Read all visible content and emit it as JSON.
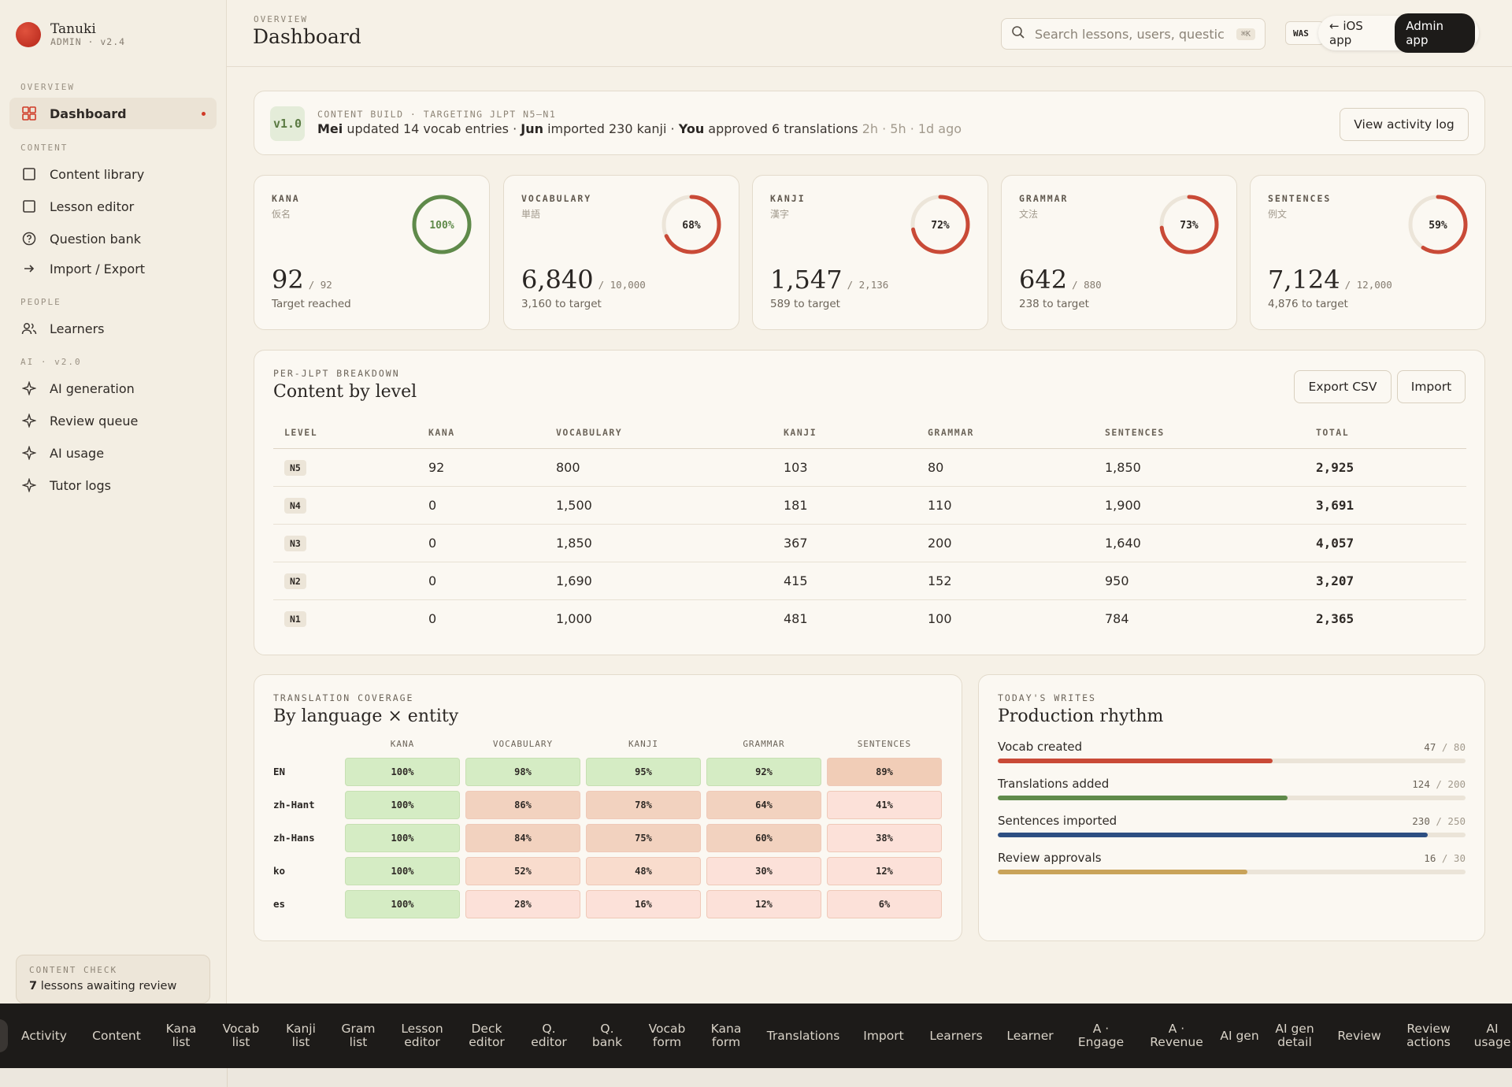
{
  "brand": {
    "name": "Tanuki",
    "sub": "ADMIN · v2.4"
  },
  "sidebar": {
    "sections": {
      "overview": "OVERVIEW",
      "content": "CONTENT",
      "people": "PEOPLE",
      "ai": "AI · v2.0"
    },
    "items": [
      {
        "label": "Dashboard",
        "icon": "grid-icon",
        "active": true
      },
      {
        "label": "Content library",
        "icon": "square-icon"
      },
      {
        "label": "Lesson editor",
        "icon": "square-icon"
      },
      {
        "label": "Question bank",
        "icon": "question-circle-icon"
      },
      {
        "label": "Import / Export",
        "icon": "arrow-right-icon"
      },
      {
        "label": "Learners",
        "icon": "users-icon"
      },
      {
        "label": "AI generation",
        "icon": "sparkle-icon"
      },
      {
        "label": "Review queue",
        "icon": "sparkle-icon"
      },
      {
        "label": "AI usage",
        "icon": "sparkle-icon"
      },
      {
        "label": "Tutor logs",
        "icon": "sparkle-icon"
      }
    ],
    "content_check": {
      "label": "CONTENT CHECK",
      "count": "7",
      "text": "lessons awaiting review"
    }
  },
  "header": {
    "overline": "OVERVIEW",
    "title": "Dashboard",
    "search_placeholder": "Search lessons, users, questic",
    "search_shortcut": "⌘K",
    "env_badge": "WAS",
    "ios_link": "← iOS app",
    "admin_button": "Admin app"
  },
  "activity": {
    "version": "v1.0",
    "overline": "CONTENT BUILD · TARGETING JLPT N5–N1",
    "entries": [
      {
        "who": "Mei",
        "what": "updated 14 vocab entries"
      },
      {
        "who": "Jun",
        "what": "imported 230 kanji"
      },
      {
        "who": "You",
        "what": "approved 6 translations"
      }
    ],
    "times": "2h · 5h · 1d ago",
    "button": "View activity log"
  },
  "stats": [
    {
      "label": "KANA",
      "jp": "仮名",
      "value": "92",
      "target": "/ 92",
      "sub": "Target reached",
      "pct": 100,
      "pct_label": "100%",
      "color": "#5f8a4a"
    },
    {
      "label": "VOCABULARY",
      "jp": "単語",
      "value": "6,840",
      "target": "/ 10,000",
      "sub": "3,160 to target",
      "pct": 68,
      "pct_label": "68%",
      "color": "#c94a37"
    },
    {
      "label": "KANJI",
      "jp": "漢字",
      "value": "1,547",
      "target": "/ 2,136",
      "sub": "589 to target",
      "pct": 72,
      "pct_label": "72%",
      "color": "#c94a37"
    },
    {
      "label": "GRAMMAR",
      "jp": "文法",
      "value": "642",
      "target": "/ 880",
      "sub": "238 to target",
      "pct": 73,
      "pct_label": "73%",
      "color": "#c94a37"
    },
    {
      "label": "SENTENCES",
      "jp": "例文",
      "value": "7,124",
      "target": "/ 12,000",
      "sub": "4,876 to target",
      "pct": 59,
      "pct_label": "59%",
      "color": "#c94a37"
    }
  ],
  "levels": {
    "overline": "PER-JLPT BREAKDOWN",
    "title": "Content by level",
    "export_button": "Export CSV",
    "import_button": "Import",
    "columns": [
      "LEVEL",
      "KANA",
      "VOCABULARY",
      "KANJI",
      "GRAMMAR",
      "SENTENCES",
      "TOTAL"
    ],
    "rows": [
      [
        "N5",
        "92",
        "800",
        "103",
        "80",
        "1,850",
        "2,925"
      ],
      [
        "N4",
        "0",
        "1,500",
        "181",
        "110",
        "1,900",
        "3,691"
      ],
      [
        "N3",
        "0",
        "1,850",
        "367",
        "200",
        "1,640",
        "4,057"
      ],
      [
        "N2",
        "0",
        "1,690",
        "415",
        "152",
        "950",
        "3,207"
      ],
      [
        "N1",
        "0",
        "1,000",
        "481",
        "100",
        "784",
        "2,365"
      ]
    ]
  },
  "coverage": {
    "overline": "TRANSLATION COVERAGE",
    "title": "By language × entity",
    "columns": [
      "KANA",
      "VOCABULARY",
      "KANJI",
      "GRAMMAR",
      "SENTENCES"
    ],
    "rows": [
      {
        "lang": "EN",
        "values": [
          100,
          98,
          95,
          92,
          89
        ]
      },
      {
        "lang": "zh-Hant",
        "values": [
          100,
          86,
          78,
          64,
          41
        ]
      },
      {
        "lang": "zh-Hans",
        "values": [
          100,
          84,
          75,
          60,
          38
        ]
      },
      {
        "lang": "ko",
        "values": [
          100,
          52,
          48,
          30,
          12
        ]
      },
      {
        "lang": "es",
        "values": [
          100,
          28,
          16,
          12,
          6
        ]
      }
    ],
    "colors": {
      "high": "#d5ecc4",
      "mid": "#f2d2bf",
      "midlow": "#f9dccd",
      "low": "#fce1d9"
    }
  },
  "rhythm": {
    "overline": "TODAY'S WRITES",
    "title": "Production rhythm",
    "bars": [
      {
        "label": "Vocab created",
        "value": 47,
        "max": 80,
        "value_label": "47",
        "max_label": "/ 80",
        "color": "#c94a37"
      },
      {
        "label": "Translations added",
        "value": 124,
        "max": 200,
        "value_label": "124",
        "max_label": "/ 200",
        "color": "#5f8a4a"
      },
      {
        "label": "Sentences imported",
        "value": 230,
        "max": 250,
        "value_label": "230",
        "max_label": "/ 250",
        "color": "#2d4f82"
      },
      {
        "label": "Review approvals",
        "value": 16,
        "max": 30,
        "value_label": "16",
        "max_label": "/ 30",
        "color": "#c9a35a"
      }
    ]
  },
  "bottom_nav": [
    "Activity",
    "Content",
    "Kana list",
    "Vocab list",
    "Kanji list",
    "Gram list",
    "Lesson editor",
    "Deck editor",
    "Q. editor",
    "Q. bank",
    "Vocab form",
    "Kana form",
    "Translations",
    "Import",
    "Learners",
    "Learner",
    "A · Engage",
    "A · Revenue",
    "AI gen",
    "AI gen detail",
    "Review",
    "Review actions",
    "AI usage"
  ]
}
